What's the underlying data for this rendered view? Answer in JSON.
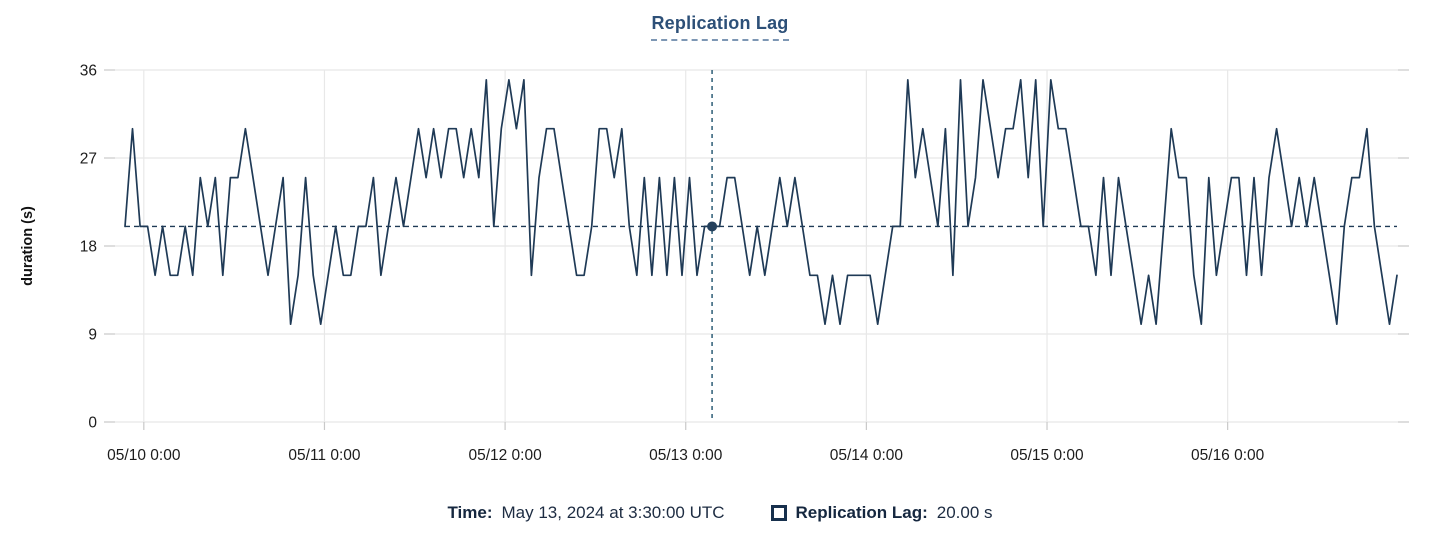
{
  "colors": {
    "line": "#1f3a56",
    "crosshair": "#3a677f",
    "dot": "#24405c",
    "grid": "#e8e8e8",
    "tick": "#c9c9c9",
    "title": "#2d5078",
    "axis_text": "#1c1c1c"
  },
  "chart_data": {
    "type": "line",
    "title": "Replication Lag",
    "ylabel": "duration (s)",
    "xlabel": "",
    "ylim": [
      0,
      36
    ],
    "yticks": [
      0,
      9,
      18,
      27,
      36
    ],
    "grid": true,
    "legend_position": "bottom",
    "x_start_label": "05/09 21:30",
    "x_interval_hours": 1,
    "xticks": [
      {
        "label": "05/10 0:00",
        "hour_offset": 2.5
      },
      {
        "label": "05/11 0:00",
        "hour_offset": 26.5
      },
      {
        "label": "05/12 0:00",
        "hour_offset": 50.5
      },
      {
        "label": "05/13 0:00",
        "hour_offset": 74.5
      },
      {
        "label": "05/14 0:00",
        "hour_offset": 98.5
      },
      {
        "label": "05/15 0:00",
        "hour_offset": 122.5
      },
      {
        "label": "05/16 0:00",
        "hour_offset": 146.5
      }
    ],
    "series": [
      {
        "name": "Replication Lag",
        "values": [
          20,
          30,
          20,
          20,
          15,
          20,
          15,
          15,
          20,
          15,
          25,
          20,
          25,
          15,
          25,
          25,
          30,
          25,
          20,
          15,
          20,
          25,
          10,
          15,
          25,
          15,
          10,
          15,
          20,
          15,
          15,
          20,
          20,
          25,
          15,
          20,
          25,
          20,
          25,
          30,
          25,
          30,
          25,
          30,
          30,
          25,
          30,
          25,
          35,
          20,
          30,
          35,
          30,
          35,
          15,
          25,
          30,
          30,
          25,
          20,
          15,
          15,
          20,
          30,
          30,
          25,
          30,
          20,
          15,
          25,
          15,
          25,
          15,
          25,
          15,
          25,
          15,
          20,
          20,
          20,
          25,
          25,
          20,
          15,
          20,
          15,
          20,
          25,
          20,
          25,
          20,
          15,
          15,
          10,
          15,
          10,
          15,
          15,
          15,
          15,
          10,
          15,
          20,
          20,
          35,
          25,
          30,
          25,
          20,
          30,
          15,
          35,
          20,
          25,
          35,
          30,
          25,
          30,
          30,
          35,
          25,
          35,
          20,
          35,
          30,
          30,
          25,
          20,
          20,
          15,
          25,
          15,
          25,
          20,
          15,
          10,
          15,
          10,
          20,
          30,
          25,
          25,
          15,
          10,
          25,
          15,
          20,
          25,
          25,
          15,
          25,
          15,
          25,
          30,
          25,
          20,
          25,
          20,
          25,
          20,
          15,
          10,
          20,
          25,
          25,
          30,
          20,
          15,
          10,
          15
        ]
      }
    ]
  },
  "crosshair": {
    "hour_offset": 78,
    "value": 20,
    "time_label": "May 13, 2024 at 3:30:00 UTC",
    "value_label": "20.00 s"
  },
  "footer": {
    "time_key": "Time:",
    "time_value": "May 13, 2024 at 3:30:00 UTC",
    "series_key": "Replication Lag:",
    "series_value": "20.00 s"
  }
}
